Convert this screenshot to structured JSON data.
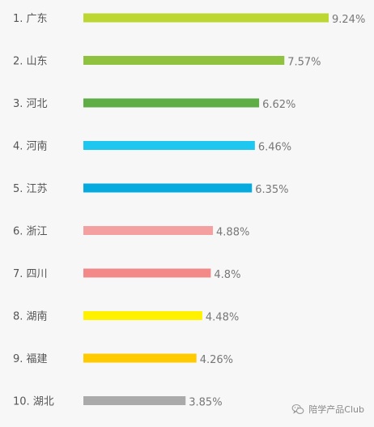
{
  "chart_data": {
    "type": "bar",
    "orientation": "horizontal",
    "categories": [
      "1. 广东",
      "2. 山东",
      "3. 河北",
      "4. 河南",
      "5. 江苏",
      "6. 浙江",
      "7. 四川",
      "8. 湖南",
      "9. 福建",
      "10. 湖北"
    ],
    "values": [
      9.24,
      7.57,
      6.62,
      6.46,
      6.35,
      4.88,
      4.8,
      4.48,
      4.26,
      3.85
    ],
    "value_labels": [
      "9.24%",
      "7.57%",
      "6.62%",
      "6.46%",
      "6.35%",
      "4.88%",
      "4.8%",
      "4.48%",
      "4.26%",
      "3.85%"
    ],
    "colors": [
      "#bcd632",
      "#8fc23e",
      "#5ead46",
      "#1ec7ef",
      "#05aadf",
      "#f5a0a0",
      "#f28888",
      "#fff100",
      "#ffca00",
      "#aaaaaa"
    ],
    "xlim": [
      0,
      9.24
    ],
    "grid": false,
    "legend": "none"
  },
  "watermark": {
    "icon": "wechat-icon",
    "text": "陪学产品Club"
  }
}
